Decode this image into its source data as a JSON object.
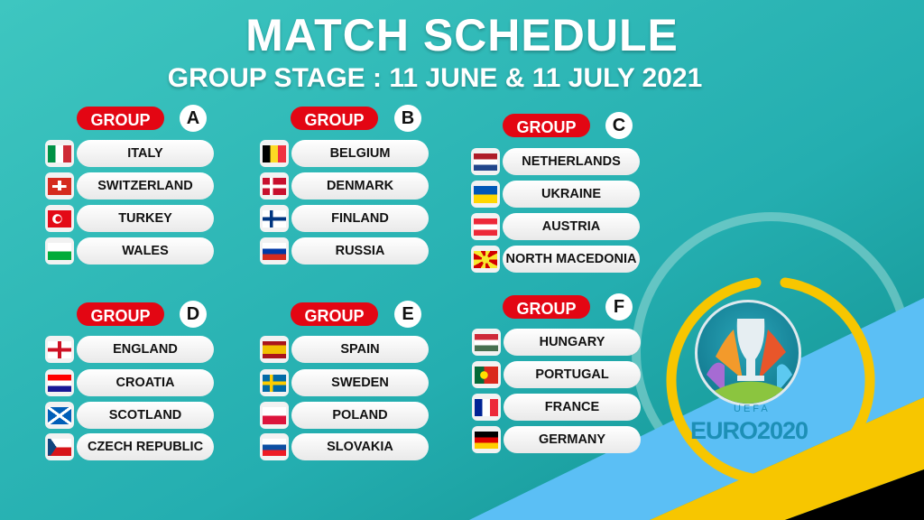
{
  "title": "MATCH SCHEDULE",
  "subtitle": "GROUP STAGE : 11 JUNE & 11 JULY 2021",
  "group_label": "GROUP",
  "colors": {
    "teal": "#2bb8b4",
    "red": "#e30613",
    "blue": "#5bbff5",
    "yellow": "#f7c600",
    "black": "#000000"
  },
  "groups": [
    {
      "letter": "A",
      "teams": [
        {
          "name": "ITALY",
          "flag": "v:#009246,#ffffff,#ce2b37"
        },
        {
          "name": "SWITZERLAND",
          "flag": "swiss"
        },
        {
          "name": "TURKEY",
          "flag": "turkey"
        },
        {
          "name": "WALES",
          "flag": "h:#ffffff,#00ab39"
        }
      ]
    },
    {
      "letter": "B",
      "teams": [
        {
          "name": "BELGIUM",
          "flag": "v:#000000,#fdda24,#ef3340"
        },
        {
          "name": "DENMARK",
          "flag": "nordic:#c8102e,#ffffff"
        },
        {
          "name": "FINLAND",
          "flag": "nordic:#ffffff,#003580"
        },
        {
          "name": "RUSSIA",
          "flag": "h:#ffffff,#0039a6,#d52b1e"
        }
      ]
    },
    {
      "letter": "C",
      "teams": [
        {
          "name": "NETHERLANDS",
          "flag": "h:#ae1c28,#ffffff,#21468b"
        },
        {
          "name": "UKRAINE",
          "flag": "h:#0057b7,#ffd700"
        },
        {
          "name": "AUSTRIA",
          "flag": "h:#ed2939,#ffffff,#ed2939"
        },
        {
          "name": "NORTH MACEDONIA",
          "flag": "macedonia"
        }
      ]
    },
    {
      "letter": "D",
      "teams": [
        {
          "name": "ENGLAND",
          "flag": "england"
        },
        {
          "name": "CROATIA",
          "flag": "h:#ff0000,#ffffff,#171796"
        },
        {
          "name": "SCOTLAND",
          "flag": "scotland"
        },
        {
          "name": "CZECH REPUBLIC",
          "flag": "czech"
        }
      ]
    },
    {
      "letter": "E",
      "teams": [
        {
          "name": "SPAIN",
          "flag": "h3:#aa151b,#f1bf00,#aa151b"
        },
        {
          "name": "SWEDEN",
          "flag": "nordic:#006aa7,#fecc00"
        },
        {
          "name": "POLAND",
          "flag": "h:#ffffff,#dc143c"
        },
        {
          "name": "SLOVAKIA",
          "flag": "h:#ffffff,#0b4ea2,#ee1c25"
        }
      ]
    },
    {
      "letter": "F",
      "teams": [
        {
          "name": "HUNGARY",
          "flag": "h:#ce2939,#ffffff,#477050"
        },
        {
          "name": "PORTUGAL",
          "flag": "portugal"
        },
        {
          "name": "FRANCE",
          "flag": "v:#002395,#ffffff,#ed2939"
        },
        {
          "name": "GERMANY",
          "flag": "h:#000000,#dd0000,#ffce00"
        }
      ]
    }
  ],
  "logo": {
    "uefa": "UEFA",
    "euro": "EURO2020"
  }
}
